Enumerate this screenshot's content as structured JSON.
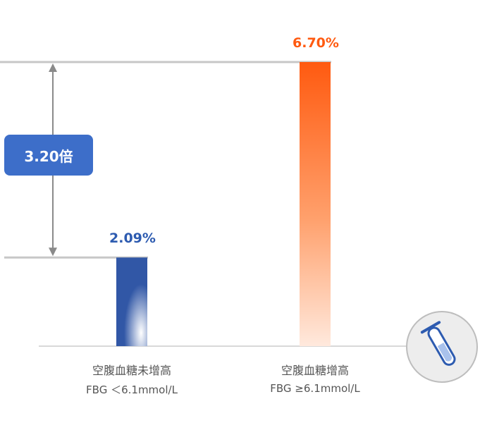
{
  "colors": {
    "bar1": "#3157a6",
    "bar2": "#ff5a10",
    "val1": "#2d5bb0",
    "val2": "#ff5a10",
    "badge": "#3d6ec9",
    "line": "#c7c7c7",
    "arrow": "#8a8a8a"
  },
  "chart_data": {
    "type": "bar",
    "categories": [
      "空腹血糖未增高",
      "空腹血糖增高"
    ],
    "subcategories": [
      "FBG ＜6.1mmol/L",
      "FBG ≥6.1mmol/L"
    ],
    "values": [
      2.09,
      6.7
    ],
    "value_labels": [
      "2.09%",
      "6.70%"
    ],
    "ratio_label": "3.20倍",
    "ylim": [
      0,
      6.7
    ],
    "grid": false
  },
  "icons": {
    "corner": "test-tube-icon"
  }
}
